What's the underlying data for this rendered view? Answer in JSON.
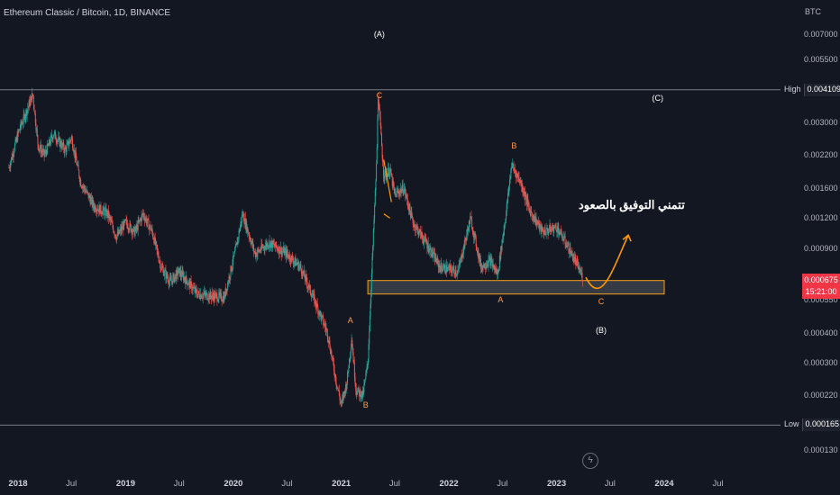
{
  "header": {
    "title": "Ethereum Classic / Bitcoin, 1D, BINANCE",
    "currency": "BTC"
  },
  "y_axis": {
    "ticks": [
      "0.007000",
      "0.005500",
      "0.003000",
      "0.002200",
      "0.001600",
      "0.001200",
      "0.000900",
      "0.000550",
      "0.000400",
      "0.000300",
      "0.000220",
      "0.000130"
    ]
  },
  "x_axis": {
    "labels": [
      {
        "text": "2018",
        "year": true
      },
      {
        "text": "Jul",
        "year": false
      },
      {
        "text": "2019",
        "year": true
      },
      {
        "text": "Jul",
        "year": false
      },
      {
        "text": "2020",
        "year": true
      },
      {
        "text": "Jul",
        "year": false
      },
      {
        "text": "2021",
        "year": true
      },
      {
        "text": "Jul",
        "year": false
      },
      {
        "text": "2022",
        "year": true
      },
      {
        "text": "Jul",
        "year": false
      },
      {
        "text": "2023",
        "year": true
      },
      {
        "text": "Jul",
        "year": false
      },
      {
        "text": "2024",
        "year": true
      },
      {
        "text": "Jul",
        "year": false
      }
    ]
  },
  "high_tag": {
    "label": "High",
    "value": "0.004109"
  },
  "low_tag": {
    "label": "Low",
    "value": "0.000165"
  },
  "last_price": {
    "value": "0.000675",
    "countdown": "15:21:00"
  },
  "wave_labels": [
    "(A)",
    "C",
    "(C)",
    "B",
    "A",
    "B",
    "A",
    "C",
    "(B)"
  ],
  "annotation_text": "تتمني التوفيق بالصعود",
  "colors": {
    "up": "#26a69a",
    "down": "#ef5350",
    "zone": "#f7a21b",
    "arrow": "#ff9800",
    "last": "#f23645"
  },
  "chart_data": {
    "type": "candlestick",
    "title": "Ethereum Classic / Bitcoin, 1D, BINANCE",
    "y_scale": "log",
    "ylim": [
      0.00011,
      0.0095
    ],
    "x_range": [
      "2017-12-01",
      "2024-12-31"
    ],
    "grid": false,
    "close_series": {
      "name": "",
      "points": [
        [
          "2017-12-01",
          0.00195
        ],
        [
          "2018-01-05",
          0.0028
        ],
        [
          "2018-02-01",
          0.0034
        ],
        [
          "2018-02-20",
          0.00395
        ],
        [
          "2018-03-10",
          0.0024
        ],
        [
          "2018-04-01",
          0.0022
        ],
        [
          "2018-05-01",
          0.0027
        ],
        [
          "2018-06-10",
          0.0023
        ],
        [
          "2018-07-01",
          0.0026
        ],
        [
          "2018-08-01",
          0.0017
        ],
        [
          "2018-09-15",
          0.00135
        ],
        [
          "2018-11-01",
          0.00125
        ],
        [
          "2018-12-01",
          0.001
        ],
        [
          "2019-01-01",
          0.00115
        ],
        [
          "2019-02-01",
          0.00105
        ],
        [
          "2019-03-01",
          0.00125
        ],
        [
          "2019-04-01",
          0.00105
        ],
        [
          "2019-05-01",
          0.00075
        ],
        [
          "2019-06-01",
          0.00065
        ],
        [
          "2019-07-01",
          0.00072
        ],
        [
          "2019-09-01",
          0.00058
        ],
        [
          "2019-12-01",
          0.00056
        ],
        [
          "2020-01-10",
          0.0009
        ],
        [
          "2020-02-01",
          0.00125
        ],
        [
          "2020-03-15",
          0.00085
        ],
        [
          "2020-05-01",
          0.00095
        ],
        [
          "2020-07-01",
          0.00085
        ],
        [
          "2020-08-15",
          0.00075
        ],
        [
          "2020-10-01",
          0.00055
        ],
        [
          "2020-11-15",
          0.0004
        ],
        [
          "2020-12-15",
          0.00025
        ],
        [
          "2021-01-01",
          0.0002
        ],
        [
          "2021-01-20",
          0.00025
        ],
        [
          "2021-02-05",
          0.00038
        ],
        [
          "2021-02-20",
          0.00023
        ],
        [
          "2021-03-15",
          0.00022
        ],
        [
          "2021-04-01",
          0.0003
        ],
        [
          "2021-04-15",
          0.00075
        ],
        [
          "2021-05-01",
          0.0021
        ],
        [
          "2021-05-06",
          0.0039
        ],
        [
          "2021-05-25",
          0.0018
        ],
        [
          "2021-06-15",
          0.0019
        ],
        [
          "2021-07-01",
          0.0015
        ],
        [
          "2021-08-01",
          0.0016
        ],
        [
          "2021-09-01",
          0.00115
        ],
        [
          "2021-10-15",
          0.00095
        ],
        [
          "2021-12-01",
          0.00075
        ],
        [
          "2022-02-01",
          0.00072
        ],
        [
          "2022-03-15",
          0.0012
        ],
        [
          "2022-04-20",
          0.00075
        ],
        [
          "2022-05-20",
          0.0008
        ],
        [
          "2022-06-15",
          0.0007
        ],
        [
          "2022-07-15",
          0.0013
        ],
        [
          "2022-08-01",
          0.002
        ],
        [
          "2022-09-01",
          0.0017
        ],
        [
          "2022-10-01",
          0.0013
        ],
        [
          "2022-11-15",
          0.00105
        ],
        [
          "2023-01-01",
          0.0011
        ],
        [
          "2023-02-01",
          0.00095
        ],
        [
          "2023-03-15",
          0.00075
        ],
        [
          "2023-04-01",
          0.000675
        ]
      ]
    },
    "reference_lines": [
      {
        "label": "High",
        "value": 0.004109
      },
      {
        "label": "Low",
        "value": 0.000165
      }
    ],
    "support_zone": {
      "from": "2021-04-01",
      "to": "2024-01-01",
      "low": 0.00058,
      "high": 0.00066
    },
    "projection_arrow": [
      [
        "2023-04-10",
        0.00068
      ],
      [
        "2023-06-01",
        0.00062
      ],
      [
        "2023-07-20",
        0.00072
      ],
      [
        "2023-09-01",
        0.00102
      ]
    ],
    "annotations": [
      {
        "text": "(A)",
        "x": "2021-05-10",
        "y": 0.007,
        "color": "white"
      },
      {
        "text": "C",
        "x": "2021-05-10",
        "y": 0.0039,
        "color": "orange"
      },
      {
        "text": "(C)",
        "x": "2023-12-10",
        "y": 0.0038,
        "color": "white"
      },
      {
        "text": "B",
        "x": "2022-08-10",
        "y": 0.0024,
        "color": "orange"
      },
      {
        "text": "A",
        "x": "2021-02-01",
        "y": 0.00045,
        "color": "orange"
      },
      {
        "text": "B",
        "x": "2021-03-25",
        "y": 0.0002,
        "color": "orange"
      },
      {
        "text": "A",
        "x": "2022-06-25",
        "y": 0.00055,
        "color": "orange"
      },
      {
        "text": "C",
        "x": "2023-06-01",
        "y": 0.00054,
        "color": "orange"
      },
      {
        "text": "(B)",
        "x": "2023-06-01",
        "y": 0.00041,
        "color": "white"
      }
    ]
  }
}
